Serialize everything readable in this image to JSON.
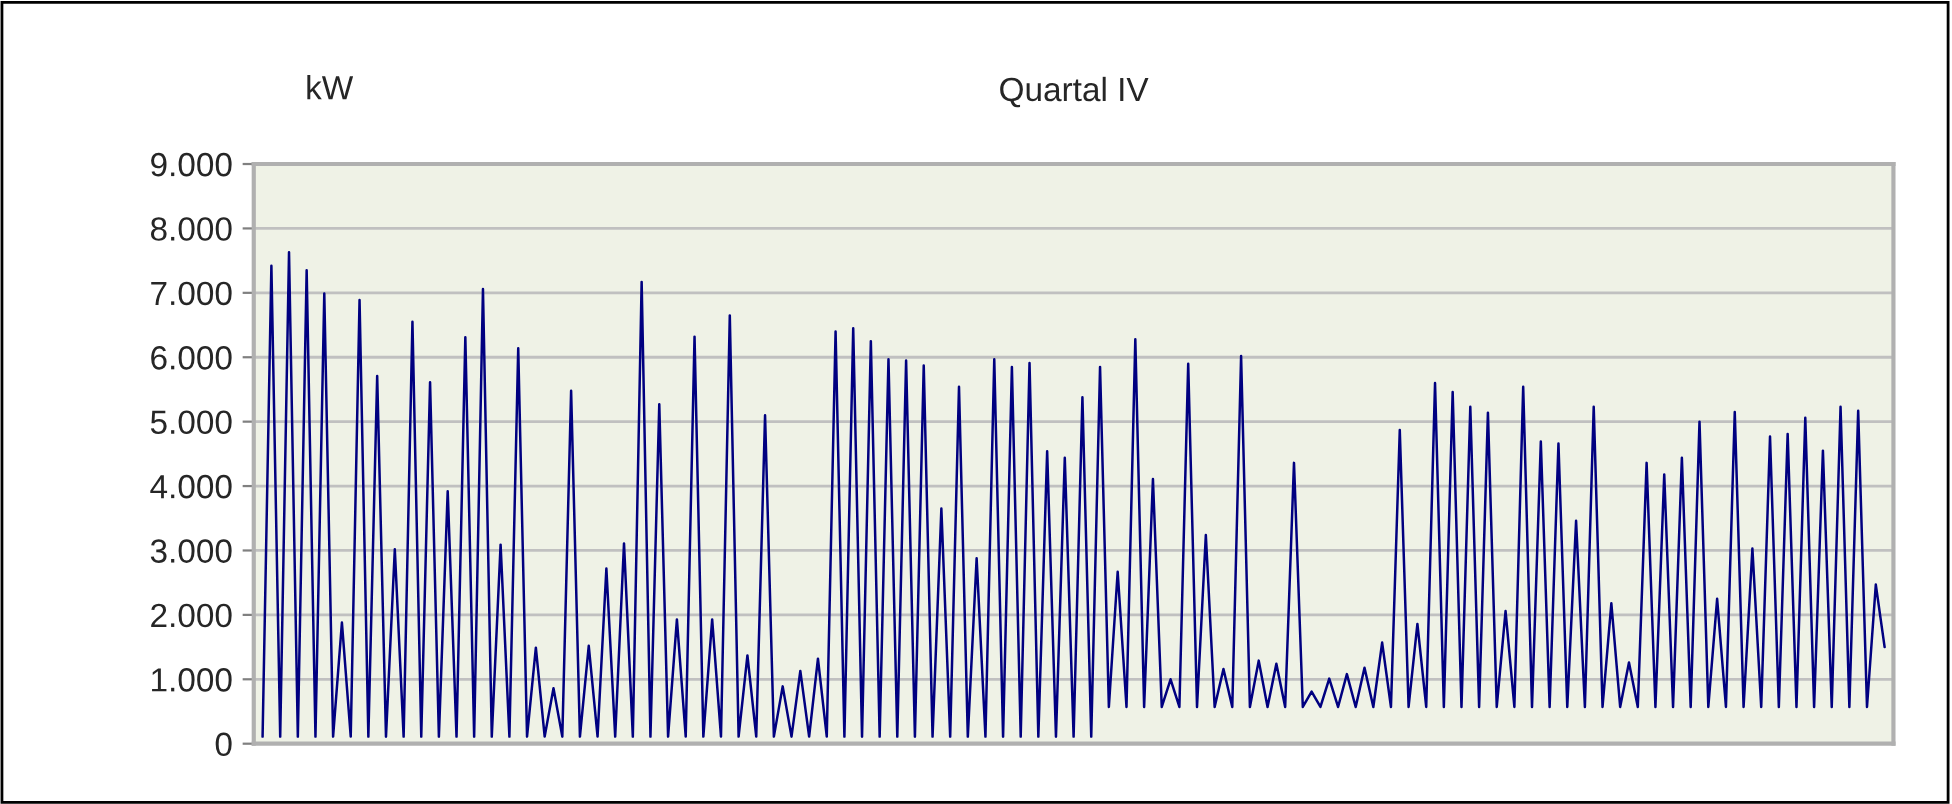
{
  "chart_data": {
    "type": "line",
    "title": "Quartal IV",
    "ylabel": "kW",
    "categories": [
      null,
      null,
      null,
      null,
      null,
      null,
      null,
      null,
      null,
      null,
      null,
      null,
      null,
      null,
      null,
      null,
      null,
      null,
      null,
      null,
      null,
      null,
      null,
      null,
      null,
      null,
      null,
      null,
      null,
      null,
      null,
      null,
      null,
      null,
      null,
      null,
      null,
      null,
      null,
      null,
      null,
      null,
      null,
      null,
      null,
      null,
      null,
      null,
      null,
      null,
      null,
      null,
      null,
      null,
      null,
      null,
      null,
      null,
      null,
      null,
      null,
      null,
      null,
      null,
      null,
      null,
      null,
      null,
      null,
      null,
      null,
      null,
      null,
      null,
      null,
      null,
      null,
      null,
      null,
      null,
      null,
      null,
      null,
      null,
      null,
      null,
      null,
      null,
      null,
      null,
      null,
      null,
      null,
      null,
      null,
      null,
      null,
      null,
      null,
      null,
      null,
      null,
      null,
      null,
      null,
      null,
      null,
      null,
      null,
      null,
      null,
      null,
      null,
      null,
      null,
      null,
      null,
      null,
      null,
      null,
      null,
      null,
      null,
      null,
      null,
      null,
      null,
      null,
      null,
      null,
      null,
      null,
      null,
      null,
      null,
      null,
      null,
      null,
      null,
      null,
      null,
      null,
      null,
      null,
      null,
      null,
      null,
      null,
      null,
      null,
      null,
      null,
      null,
      null,
      null,
      null,
      null,
      null,
      null,
      null,
      null,
      null,
      null,
      null,
      null,
      null,
      null,
      null,
      null,
      null,
      null,
      null,
      null,
      null,
      null,
      null,
      null,
      null,
      null,
      null,
      null,
      null,
      null,
      null,
      null
    ],
    "series": [
      {
        "color": "#000080",
        "values": [
          110,
          7420,
          110,
          7630,
          110,
          7350,
          110,
          6990,
          110,
          1880,
          110,
          6890,
          110,
          5710,
          110,
          3020,
          110,
          6550,
          110,
          5610,
          110,
          3920,
          110,
          6310,
          110,
          7060,
          110,
          3090,
          110,
          6140,
          110,
          1490,
          110,
          860,
          110,
          5480,
          110,
          1520,
          110,
          2720,
          110,
          3110,
          110,
          7170,
          110,
          5270,
          110,
          1930,
          110,
          6320,
          110,
          1930,
          110,
          6650,
          110,
          1370,
          110,
          5100,
          110,
          890,
          110,
          1130,
          110,
          1320,
          110,
          6400,
          110,
          6450,
          110,
          6250,
          110,
          5970,
          110,
          5950,
          110,
          5870,
          110,
          3650,
          110,
          5540,
          110,
          2880,
          110,
          5970,
          110,
          5850,
          110,
          5910,
          110,
          4540,
          110,
          4440,
          110,
          5380,
          110,
          5850,
          570,
          2670,
          570,
          6280,
          570,
          4110,
          570,
          1000,
          570,
          5900,
          570,
          3240,
          570,
          1160,
          570,
          6020,
          570,
          1290,
          570,
          1240,
          570,
          4360,
          570,
          810,
          570,
          1010,
          570,
          1080,
          570,
          1180,
          570,
          1570,
          570,
          4870,
          570,
          1860,
          570,
          5600,
          570,
          5460,
          570,
          5230,
          570,
          5140,
          570,
          2060,
          570,
          5540,
          570,
          4690,
          570,
          4660,
          570,
          3460,
          570,
          5230,
          570,
          2180,
          570,
          1260,
          570,
          4360,
          570,
          4180,
          570,
          4440,
          570,
          5000,
          570,
          2250,
          570,
          5150,
          570,
          3030,
          570,
          4770,
          570,
          4810,
          570,
          5060,
          570,
          4550,
          570,
          5230,
          570,
          5170,
          570,
          2470,
          1500
        ]
      }
    ],
    "ylim": [
      0,
      9000
    ],
    "yticks": [
      0,
      {
        "value": 1000,
        "label": "1.000"
      },
      {
        "value": 2000,
        "label": "2.000"
      },
      {
        "value": 3000,
        "label": "3.000"
      },
      {
        "value": 4000,
        "label": "4.000"
      },
      {
        "value": 5000,
        "label": "5.000"
      },
      {
        "value": 6000,
        "label": "6.000"
      },
      {
        "value": 7000,
        "label": "7.000"
      },
      {
        "value": 8000,
        "label": "8.000"
      },
      {
        "value": 9000,
        "label": "9.000"
      }
    ],
    "grid": "y",
    "marker": "none",
    "line_style": "solid"
  }
}
